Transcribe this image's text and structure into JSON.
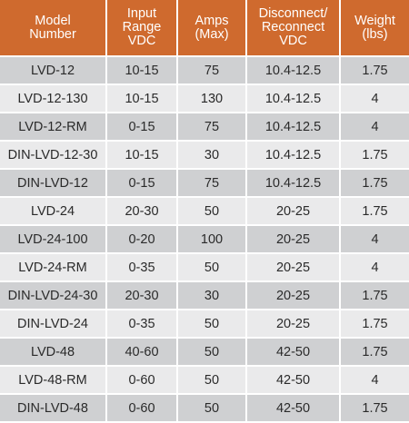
{
  "table": {
    "headers": [
      "Model\nNumber",
      "Input\nRange\nVDC",
      "Amps\n(Max)",
      "Disconnect/\nReconnect\nVDC",
      "Weight\n(lbs)"
    ],
    "rows": [
      [
        "LVD-12",
        "10-15",
        "75",
        "10.4-12.5",
        "1.75"
      ],
      [
        "LVD-12-130",
        "10-15",
        "130",
        "10.4-12.5",
        "4"
      ],
      [
        "LVD-12-RM",
        "0-15",
        "75",
        "10.4-12.5",
        "4"
      ],
      [
        "DIN-LVD-12-30",
        "10-15",
        "30",
        "10.4-12.5",
        "1.75"
      ],
      [
        "DIN-LVD-12",
        "0-15",
        "75",
        "10.4-12.5",
        "1.75"
      ],
      [
        "LVD-24",
        "20-30",
        "50",
        "20-25",
        "1.75"
      ],
      [
        "LVD-24-100",
        "0-20",
        "100",
        "20-25",
        "4"
      ],
      [
        "LVD-24-RM",
        "0-35",
        "50",
        "20-25",
        "4"
      ],
      [
        "DIN-LVD-24-30",
        "20-30",
        "30",
        "20-25",
        "1.75"
      ],
      [
        "DIN-LVD-24",
        "0-35",
        "50",
        "20-25",
        "1.75"
      ],
      [
        "LVD-48",
        "40-60",
        "50",
        "42-50",
        "1.75"
      ],
      [
        "LVD-48-RM",
        "0-60",
        "50",
        "42-50",
        "4"
      ],
      [
        "DIN-LVD-48",
        "0-60",
        "50",
        "42-50",
        "1.75"
      ]
    ]
  },
  "colors": {
    "header_bg": "#cf6a2e",
    "header_text": "#ffffff",
    "row_odd": "#cfd0d2",
    "row_even": "#eaeaeb",
    "cell_text": "#2a2a2a"
  }
}
